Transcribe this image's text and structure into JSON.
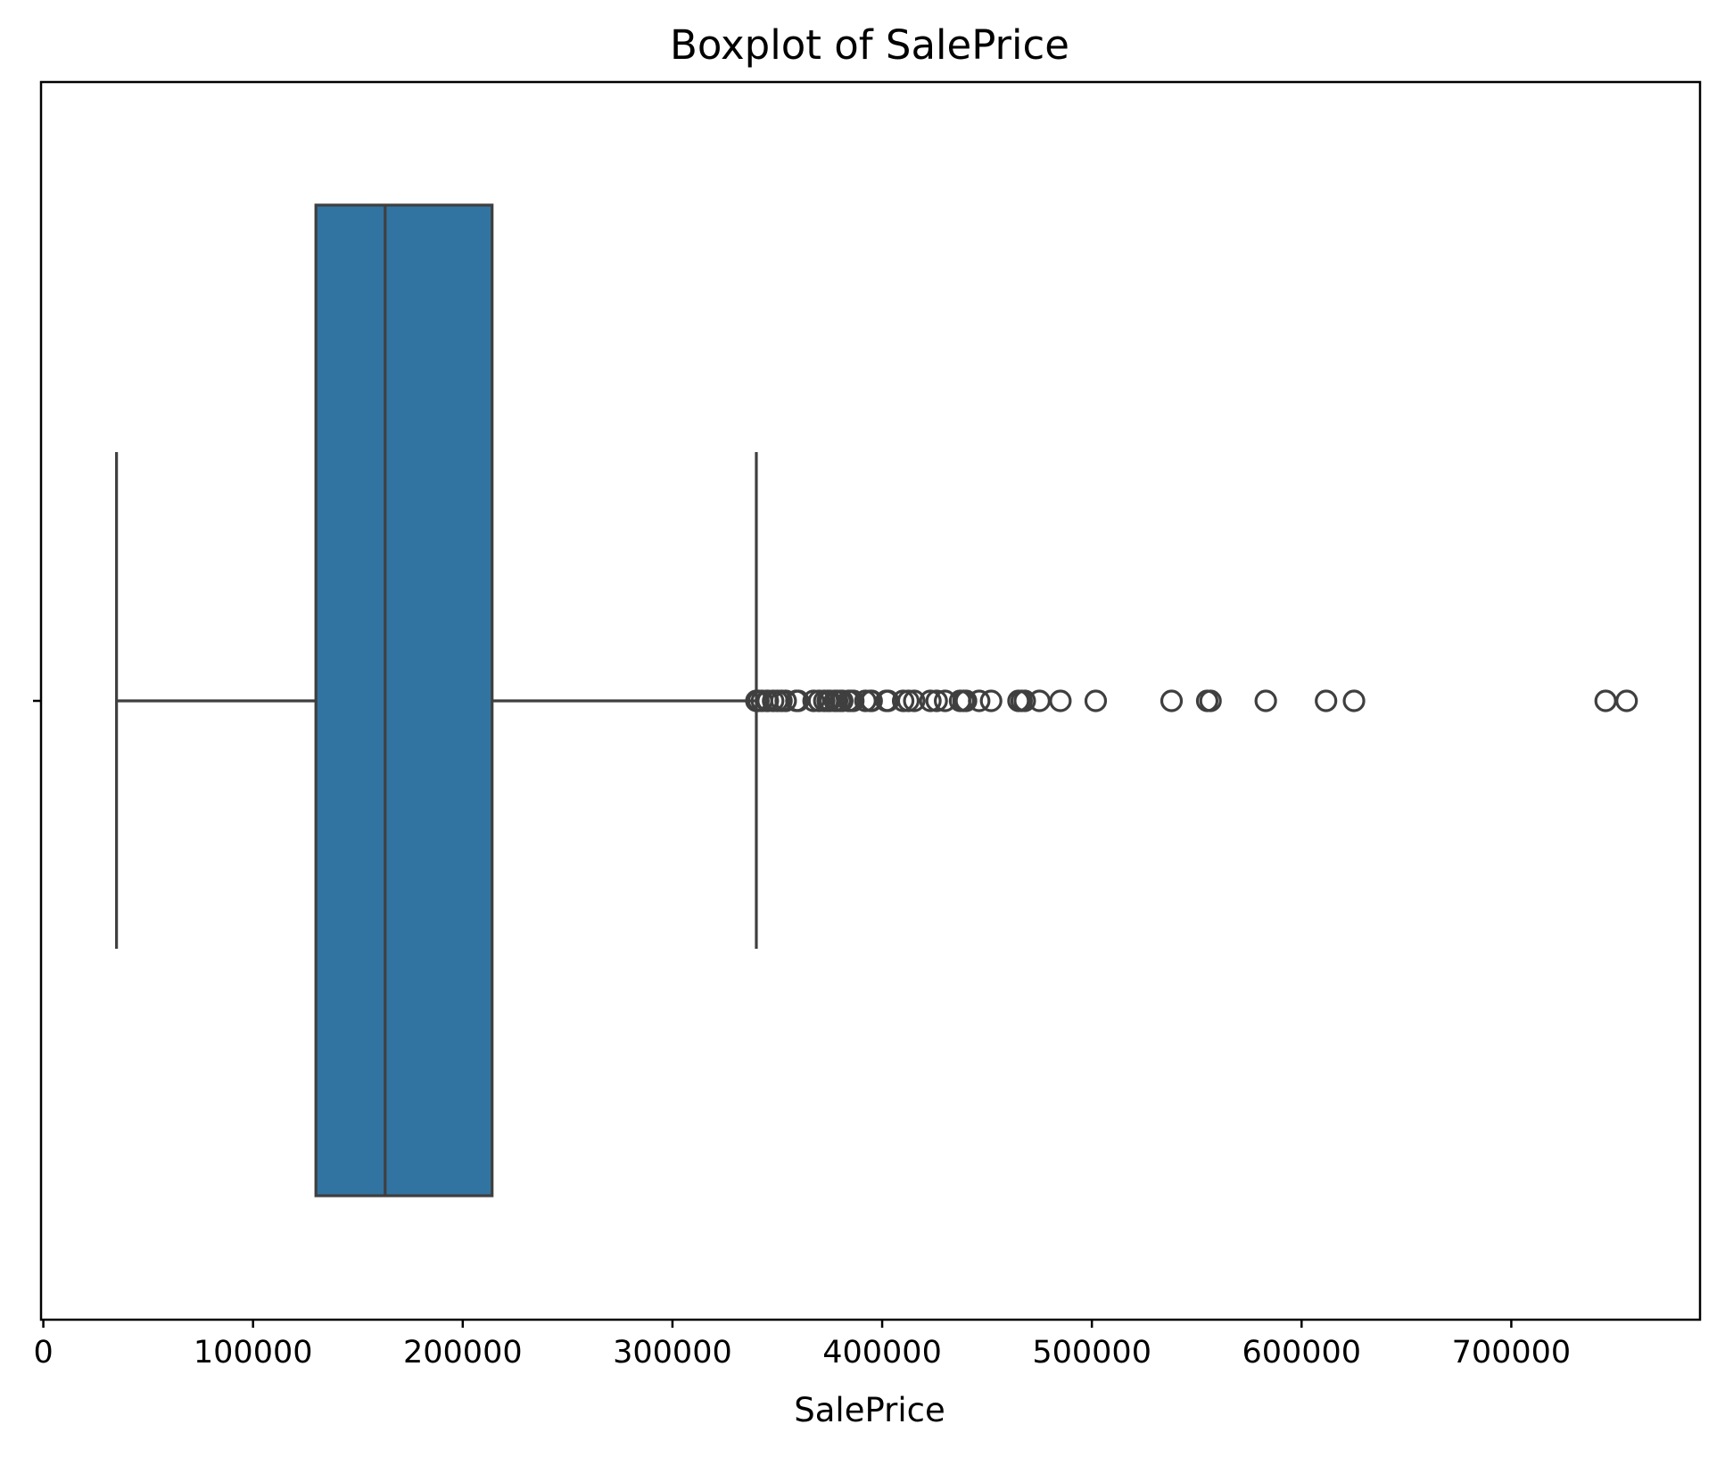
{
  "chart_data": {
    "type": "box",
    "orientation": "horizontal",
    "title": "Boxplot of SalePrice",
    "xlabel": "SalePrice",
    "ylabel": "",
    "xlim": [
      -1100,
      790000
    ],
    "xticks": [
      0,
      100000,
      200000,
      300000,
      400000,
      500000,
      600000,
      700000
    ],
    "xtick_labels": [
      "0",
      "100000",
      "200000",
      "300000",
      "400000",
      "500000",
      "600000",
      "700000"
    ],
    "grid": false,
    "colors": {
      "box_fill": "#3274a1",
      "lines": "#3f3f3f",
      "outlier_edge": "#3f3f3f"
    },
    "series": [
      {
        "whisker_low": 34900,
        "q1": 129975,
        "median": 163000,
        "q3": 214000,
        "whisker_high": 340000,
        "outliers": [
          340000,
          341000,
          342643,
          345000,
          345474,
          348000,
          350000,
          352000,
          354000,
          359100,
          360000,
          367294,
          369900,
          372402,
          374000,
          375000,
          377426,
          378500,
          380000,
          381000,
          383970,
          385000,
          386250,
          392000,
          394432,
          395000,
          402000,
          402861,
          410000,
          412500,
          415298,
          423000,
          426000,
          430000,
          437154,
          438780,
          440000,
          446261,
          451950,
          465000,
          466500,
          468000,
          475000,
          485000,
          501837,
          538000,
          555000,
          556581,
          582933,
          611657,
          625000,
          745000,
          755000
        ]
      }
    ]
  }
}
